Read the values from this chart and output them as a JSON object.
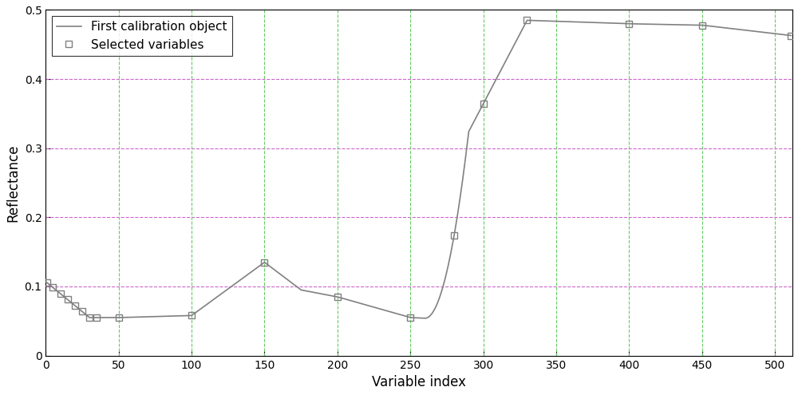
{
  "title": "",
  "xlabel": "Variable index",
  "ylabel": "Reflectance",
  "xlim": [
    0,
    512
  ],
  "ylim": [
    0,
    0.5
  ],
  "xticks": [
    0,
    50,
    100,
    150,
    200,
    250,
    300,
    350,
    400,
    450,
    500
  ],
  "yticks": [
    0,
    0.1,
    0.2,
    0.3,
    0.4,
    0.5
  ],
  "line_color": "#808080",
  "selected_color": "#808080",
  "grid_color_h": "#cc66cc",
  "grid_color_v": "#66cc66",
  "background_color": "#ffffff",
  "legend_line_label": "First calibration object",
  "legend_marker_label": "Selected variables",
  "selected_x": [
    1,
    5,
    10,
    15,
    20,
    25,
    30,
    35,
    50,
    100,
    150,
    200,
    250,
    280,
    300,
    330,
    400,
    450,
    511
  ],
  "figsize": [
    10.0,
    4.95
  ],
  "dpi": 100
}
